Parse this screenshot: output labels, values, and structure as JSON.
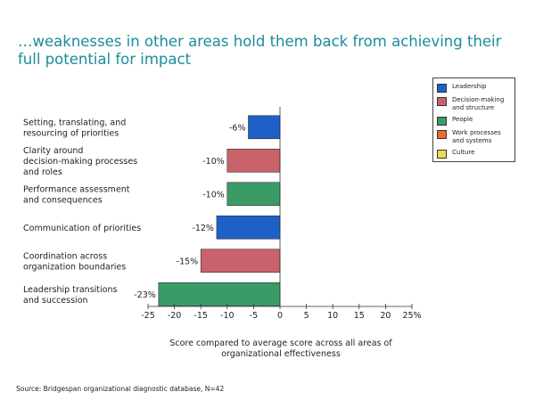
{
  "header": {
    "title": "…weaknesses in other areas hold them back from achieving their full potential for impact"
  },
  "chart_data": {
    "type": "bar",
    "orientation": "horizontal",
    "categories": [
      "Setting, translating, and resourcing of priorities",
      "Clarity around decision-making processes and roles",
      "Performance assessment and consequences",
      "Communication of priorities",
      "Coordination across organization boundaries",
      "Leadership transitions and succession"
    ],
    "values": [
      -6,
      -10,
      -10,
      -12,
      -15,
      -23
    ],
    "value_labels": [
      "-6%",
      "-10%",
      "-10%",
      "-12%",
      "-15%",
      "-23%"
    ],
    "bar_groups": [
      "Leadership",
      "Decision-making and structure",
      "People",
      "Leadership",
      "Decision-making and structure",
      "People"
    ],
    "xlabel": "Score compared to average score across all areas of organizational effectiveness",
    "xlim": [
      -25,
      25
    ],
    "xticks": [
      -25,
      -20,
      -15,
      -10,
      -5,
      0,
      5,
      10,
      15,
      20,
      25
    ],
    "xtick_labels": [
      "-25",
      "-20",
      "-15",
      "-10",
      "-5",
      "0",
      "5",
      "10",
      "15",
      "20",
      "25%"
    ],
    "grid": false,
    "legend_position": "top-right",
    "legend": [
      {
        "name": "Leadership",
        "color": "#1f5fc8"
      },
      {
        "name": "Decision-making and structure",
        "color": "#c8636b"
      },
      {
        "name": "People",
        "color": "#3a9b67"
      },
      {
        "name": "Work processes and systems",
        "color": "#ec6a35"
      },
      {
        "name": "Culture",
        "color": "#f0dc4a"
      }
    ]
  },
  "footer": {
    "source": "Source: Bridgespan organizational diagnostic database, N=42"
  }
}
